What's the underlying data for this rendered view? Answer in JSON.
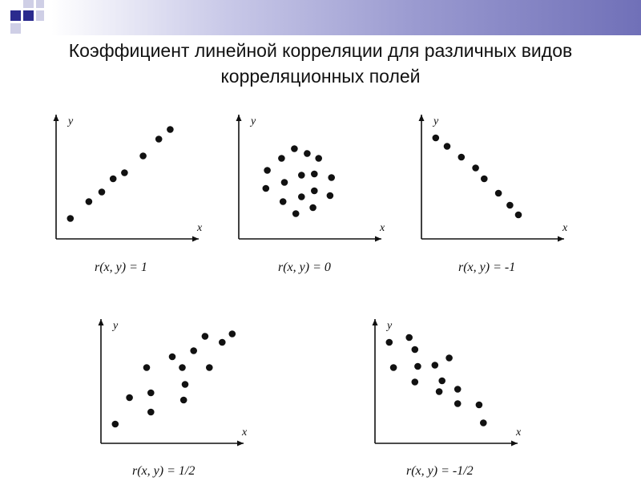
{
  "slide": {
    "title": "Коэффициент линейной корреляции для различных видов корреляционных полей"
  },
  "colors": {
    "header_gradient_end": "#7070b8",
    "square_dark": "#2b2b8e",
    "square_light": "#cfcfe6",
    "points": "#111111"
  },
  "chart_data": [
    {
      "type": "scatter",
      "xlabel": "x",
      "ylabel": "y",
      "xlim": [
        0,
        10
      ],
      "ylim": [
        0,
        10
      ],
      "caption": "r(x, y) = 1",
      "points": [
        [
          1,
          1.7
        ],
        [
          2.3,
          3.1
        ],
        [
          3.2,
          3.9
        ],
        [
          4,
          5
        ],
        [
          4.8,
          5.5
        ],
        [
          6.1,
          6.9
        ],
        [
          7.2,
          8.3
        ],
        [
          8,
          9.1
        ]
      ]
    },
    {
      "type": "scatter",
      "xlabel": "x",
      "ylabel": "y",
      "xlim": [
        0,
        10
      ],
      "ylim": [
        0,
        10
      ],
      "caption": "r(x, y) = 0",
      "points": [
        [
          3,
          6.7
        ],
        [
          2,
          5.7
        ],
        [
          3.9,
          7.5
        ],
        [
          4.8,
          7.1
        ],
        [
          5.6,
          6.7
        ],
        [
          3.2,
          4.7
        ],
        [
          4.4,
          5.3
        ],
        [
          5.3,
          5.4
        ],
        [
          6.5,
          5.1
        ],
        [
          1.9,
          4.2
        ],
        [
          3.1,
          3.1
        ],
        [
          4.4,
          3.5
        ],
        [
          5.3,
          4
        ],
        [
          6.4,
          3.6
        ],
        [
          4,
          2.1
        ],
        [
          5.2,
          2.6
        ]
      ]
    },
    {
      "type": "scatter",
      "xlabel": "x",
      "ylabel": "y",
      "xlim": [
        0,
        10
      ],
      "ylim": [
        0,
        10
      ],
      "caption": "r(x, y) = -1",
      "points": [
        [
          1,
          8.4
        ],
        [
          1.8,
          7.7
        ],
        [
          2.8,
          6.8
        ],
        [
          3.8,
          5.9
        ],
        [
          4.4,
          5
        ],
        [
          5.4,
          3.8
        ],
        [
          6.2,
          2.8
        ],
        [
          6.8,
          2
        ]
      ]
    },
    {
      "type": "scatter",
      "xlabel": "x",
      "ylabel": "y",
      "xlim": [
        0,
        10
      ],
      "ylim": [
        0,
        10
      ],
      "caption": "r(x, y) = 1/2",
      "points": [
        [
          1,
          1.6
        ],
        [
          2,
          3.8
        ],
        [
          3.5,
          2.6
        ],
        [
          3.5,
          4.2
        ],
        [
          3.2,
          6.3
        ],
        [
          5,
          7.2
        ],
        [
          5.7,
          6.3
        ],
        [
          5.9,
          4.9
        ],
        [
          5.8,
          3.6
        ],
        [
          6.5,
          7.7
        ],
        [
          7.3,
          8.9
        ],
        [
          7.6,
          6.3
        ],
        [
          8.5,
          8.4
        ],
        [
          9.2,
          9.1
        ]
      ]
    },
    {
      "type": "scatter",
      "xlabel": "x",
      "ylabel": "y",
      "xlim": [
        0,
        10
      ],
      "ylim": [
        0,
        10
      ],
      "caption": "r(x, y) = -1/2",
      "points": [
        [
          1,
          8.4
        ],
        [
          1.3,
          6.3
        ],
        [
          2.4,
          8.8
        ],
        [
          2.8,
          7.8
        ],
        [
          3,
          6.4
        ],
        [
          2.8,
          5.1
        ],
        [
          4.2,
          6.5
        ],
        [
          4.5,
          4.3
        ],
        [
          4.7,
          5.2
        ],
        [
          5.2,
          7.1
        ],
        [
          5.8,
          4.5
        ],
        [
          5.8,
          3.3
        ],
        [
          7.3,
          3.2
        ],
        [
          7.6,
          1.7
        ]
      ]
    }
  ]
}
